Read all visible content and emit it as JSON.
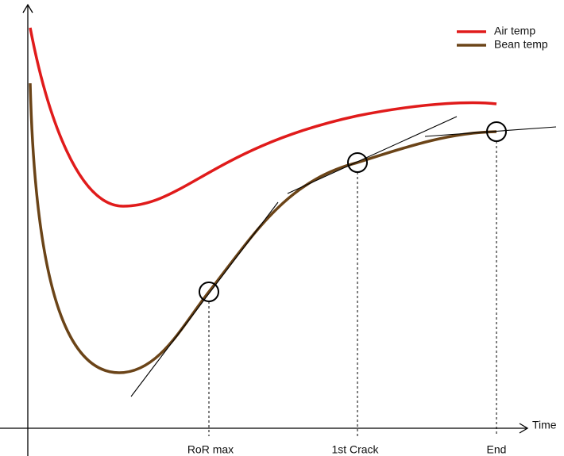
{
  "axis": {
    "x_label": "Time"
  },
  "legend": [
    "Air temp",
    "Bean temp"
  ],
  "markers": [
    {
      "label": "RoR max"
    },
    {
      "label": "1st Crack"
    },
    {
      "label": "End"
    }
  ]
}
